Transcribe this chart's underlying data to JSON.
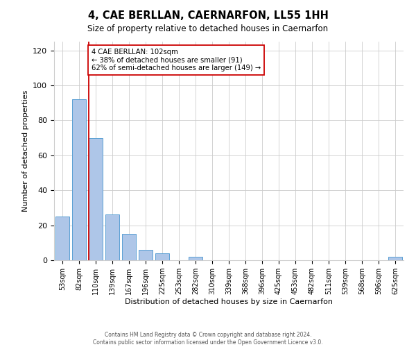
{
  "title": "4, CAE BERLLAN, CAERNARFON, LL55 1HH",
  "subtitle": "Size of property relative to detached houses in Caernarfon",
  "xlabel": "Distribution of detached houses by size in Caernarfon",
  "ylabel": "Number of detached properties",
  "bar_labels": [
    "53sqm",
    "82sqm",
    "110sqm",
    "139sqm",
    "167sqm",
    "196sqm",
    "225sqm",
    "253sqm",
    "282sqm",
    "310sqm",
    "339sqm",
    "368sqm",
    "396sqm",
    "425sqm",
    "453sqm",
    "482sqm",
    "511sqm",
    "539sqm",
    "568sqm",
    "596sqm",
    "625sqm"
  ],
  "bar_values": [
    25,
    92,
    70,
    26,
    15,
    6,
    4,
    0,
    2,
    0,
    0,
    0,
    0,
    0,
    0,
    0,
    0,
    0,
    0,
    0,
    2
  ],
  "bar_color": "#aec6e8",
  "bar_edge_color": "#5a9fd4",
  "ylim": [
    0,
    125
  ],
  "yticks": [
    0,
    20,
    40,
    60,
    80,
    100,
    120
  ],
  "marker_idx": 2,
  "marker_label_line1": "4 CAE BERLLAN: 102sqm",
  "marker_label_line2": "← 38% of detached houses are smaller (91)",
  "marker_label_line3": "62% of semi-detached houses are larger (149) →",
  "marker_color": "#cc0000",
  "box_color": "#cc0000",
  "footnote1": "Contains HM Land Registry data © Crown copyright and database right 2024.",
  "footnote2": "Contains public sector information licensed under the Open Government Licence v3.0."
}
